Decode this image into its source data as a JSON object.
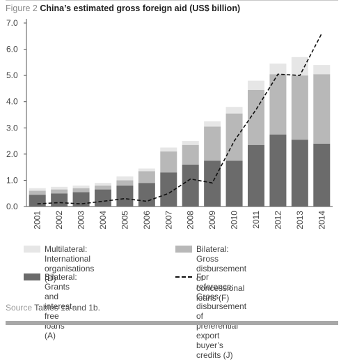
{
  "figure": {
    "label": "Figure 2",
    "title": "China’s estimated gross foreign aid (US$ billion)"
  },
  "source": {
    "label": "Source",
    "text": "Tables 1a and 1b."
  },
  "legend": [
    {
      "key": "multilateral",
      "line1": "Multilateral: International",
      "line2": "organisations (D)",
      "line3": ""
    },
    {
      "key": "concessional",
      "line1": "Bilateral: Gross disbursement of",
      "line2": "concessional loans (F)",
      "line3": ""
    },
    {
      "key": "grants",
      "line1": "Bilateral: Grants and",
      "line2": "interest-free loans (A)",
      "line3": ""
    },
    {
      "key": "reference",
      "line1": "For reference: Gross",
      "line2": "disbursement of preferential",
      "line3": "export buyer’s credits (J)"
    }
  ],
  "chart_data": {
    "type": "bar",
    "stacked": true,
    "ylim": [
      0,
      7
    ],
    "yticks": [
      "0.0",
      "1.0",
      "2.0",
      "3.0",
      "4.0",
      "5.0",
      "6.0",
      "7.0"
    ],
    "grid": false,
    "categories": [
      "2001",
      "2002",
      "2003",
      "2004",
      "2005",
      "2006",
      "2007",
      "2008",
      "2009",
      "2010",
      "2011",
      "2012",
      "2013",
      "2014"
    ],
    "series": [
      {
        "key": "grants",
        "color": "#6b6b6b",
        "values": [
          0.45,
          0.5,
          0.55,
          0.65,
          0.8,
          0.9,
          1.3,
          1.6,
          1.75,
          1.75,
          2.35,
          2.75,
          2.55,
          2.4
        ]
      },
      {
        "key": "concessional",
        "color": "#b8b8b8",
        "values": [
          0.15,
          0.15,
          0.15,
          0.15,
          0.2,
          0.45,
          0.8,
          0.75,
          1.3,
          1.8,
          2.1,
          2.3,
          2.45,
          2.65
        ]
      },
      {
        "key": "multilateral",
        "color": "#e6e6e6",
        "values": [
          0.1,
          0.1,
          0.1,
          0.1,
          0.15,
          0.1,
          0.15,
          0.15,
          0.2,
          0.25,
          0.35,
          0.4,
          0.7,
          0.35
        ]
      }
    ],
    "reference_line": {
      "key": "reference",
      "style": "dashed",
      "color": "#111111",
      "values": [
        0.1,
        0.15,
        0.1,
        0.2,
        0.3,
        0.2,
        0.5,
        1.05,
        0.9,
        2.5,
        3.7,
        5.05,
        5.0,
        6.6
      ]
    }
  }
}
